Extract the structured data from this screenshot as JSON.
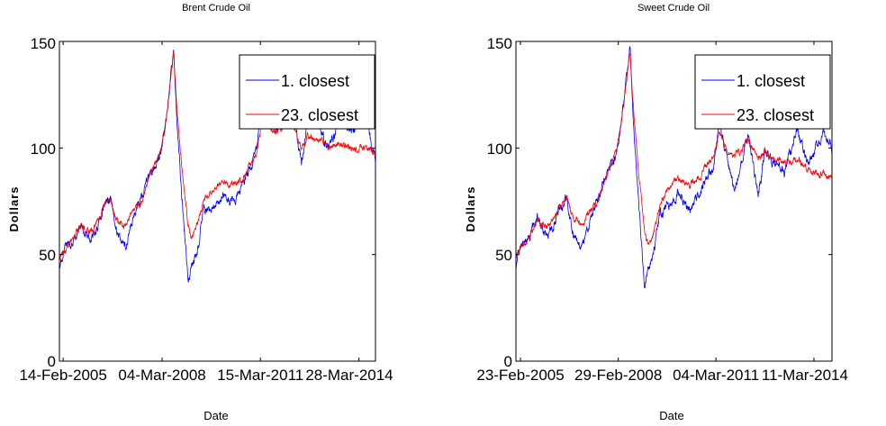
{
  "chart_data": [
    {
      "type": "line",
      "title": "Brent Crude Oil",
      "xlabel": "Date",
      "ylabel": "Dollars",
      "ylim": [
        0,
        150
      ],
      "yticks": [
        "0",
        "50",
        "100",
        "150"
      ],
      "xlim": [
        "2005-01-03",
        "2014-09-30"
      ],
      "xtick_dates": [
        "2005-02-14",
        "2008-03-04",
        "2011-03-15",
        "2014-03-28"
      ],
      "xtick_labels": [
        "14-Feb-2005",
        "04-Mar-2008",
        "15-Mar-2011",
        "28-Mar-2014"
      ],
      "legend": {
        "position": "top-right"
      },
      "grid": false,
      "series": [
        {
          "name": "1. closest",
          "color": "#0000ff",
          "points": [
            [
              "2005-01-03",
              44
            ],
            [
              "2005-03-01",
              52
            ],
            [
              "2005-06-01",
              55
            ],
            [
              "2005-09-01",
              64
            ],
            [
              "2005-12-01",
              57
            ],
            [
              "2006-03-01",
              62
            ],
            [
              "2006-05-01",
              72
            ],
            [
              "2006-08-01",
              77
            ],
            [
              "2006-10-01",
              62
            ],
            [
              "2007-01-15",
              54
            ],
            [
              "2007-04-01",
              66
            ],
            [
              "2007-07-01",
              75
            ],
            [
              "2007-10-01",
              85
            ],
            [
              "2007-12-01",
              91
            ],
            [
              "2008-02-01",
              95
            ],
            [
              "2008-04-01",
              108
            ],
            [
              "2008-06-01",
              130
            ],
            [
              "2008-07-11",
              145
            ],
            [
              "2008-08-15",
              113
            ],
            [
              "2008-10-15",
              75
            ],
            [
              "2008-12-20",
              39
            ],
            [
              "2009-02-01",
              44
            ],
            [
              "2009-04-01",
              51
            ],
            [
              "2009-06-15",
              70
            ],
            [
              "2009-10-01",
              72
            ],
            [
              "2010-01-01",
              78
            ],
            [
              "2010-05-15",
              74
            ],
            [
              "2010-08-01",
              80
            ],
            [
              "2010-12-01",
              91
            ],
            [
              "2011-02-01",
              101
            ],
            [
              "2011-04-15",
              122
            ],
            [
              "2011-07-01",
              110
            ],
            [
              "2011-10-01",
              108
            ],
            [
              "2012-03-01",
              124
            ],
            [
              "2012-06-20",
              91
            ],
            [
              "2012-09-01",
              114
            ],
            [
              "2013-01-01",
              111
            ],
            [
              "2013-04-15",
              99
            ],
            [
              "2013-09-01",
              115
            ],
            [
              "2014-01-01",
              108
            ],
            [
              "2014-06-15",
              114
            ],
            [
              "2014-09-30",
              94
            ]
          ]
        },
        {
          "name": "23. closest",
          "color": "#ff0000",
          "points": [
            [
              "2005-01-03",
              47
            ],
            [
              "2005-03-01",
              52
            ],
            [
              "2005-06-01",
              56
            ],
            [
              "2005-09-01",
              64
            ],
            [
              "2005-12-01",
              60
            ],
            [
              "2006-03-01",
              64
            ],
            [
              "2006-05-01",
              72
            ],
            [
              "2006-08-01",
              77
            ],
            [
              "2006-10-01",
              67
            ],
            [
              "2007-01-15",
              63
            ],
            [
              "2007-04-01",
              70
            ],
            [
              "2007-07-01",
              74
            ],
            [
              "2007-10-01",
              85
            ],
            [
              "2007-12-01",
              92
            ],
            [
              "2008-02-01",
              97
            ],
            [
              "2008-04-01",
              108
            ],
            [
              "2008-06-01",
              130
            ],
            [
              "2008-07-11",
              146
            ],
            [
              "2008-08-15",
              118
            ],
            [
              "2008-10-15",
              90
            ],
            [
              "2008-12-20",
              64
            ],
            [
              "2009-02-01",
              58
            ],
            [
              "2009-04-01",
              64
            ],
            [
              "2009-06-15",
              75
            ],
            [
              "2009-10-01",
              80
            ],
            [
              "2010-01-01",
              84
            ],
            [
              "2010-05-15",
              82
            ],
            [
              "2010-08-01",
              85
            ],
            [
              "2010-12-01",
              92
            ],
            [
              "2011-02-01",
              99
            ],
            [
              "2011-04-15",
              115
            ],
            [
              "2011-07-01",
              110
            ],
            [
              "2011-10-01",
              108
            ],
            [
              "2012-03-01",
              112
            ],
            [
              "2012-06-20",
              100
            ],
            [
              "2012-09-01",
              106
            ],
            [
              "2013-01-01",
              104
            ],
            [
              "2013-04-15",
              100
            ],
            [
              "2013-09-01",
              102
            ],
            [
              "2014-01-01",
              99
            ],
            [
              "2014-06-15",
              100
            ],
            [
              "2014-09-30",
              98
            ]
          ]
        }
      ]
    },
    {
      "type": "line",
      "title": "Sweet Crude Oil",
      "xlabel": "Date",
      "ylabel": "Dollars",
      "ylim": [
        0,
        150
      ],
      "yticks": [
        "0",
        "50",
        "100",
        "150"
      ],
      "xlim": [
        "2005-01-03",
        "2014-09-30"
      ],
      "xtick_dates": [
        "2005-02-23",
        "2008-02-29",
        "2011-03-04",
        "2014-03-11"
      ],
      "xtick_labels": [
        "23-Feb-2005",
        "29-Feb-2008",
        "04-Mar-2011",
        "11-Mar-2014"
      ],
      "legend": {
        "position": "top-right"
      },
      "grid": false,
      "series": [
        {
          "name": "1. closest",
          "color": "#0000ff",
          "points": [
            [
              "2005-01-03",
              44
            ],
            [
              "2005-03-01",
              55
            ],
            [
              "2005-06-01",
              57
            ],
            [
              "2005-09-01",
              68
            ],
            [
              "2005-12-01",
              59
            ],
            [
              "2006-03-01",
              63
            ],
            [
              "2006-05-01",
              72
            ],
            [
              "2006-08-01",
              76
            ],
            [
              "2006-10-01",
              60
            ],
            [
              "2007-01-15",
              53
            ],
            [
              "2007-04-01",
              64
            ],
            [
              "2007-07-01",
              75
            ],
            [
              "2007-10-01",
              85
            ],
            [
              "2007-12-01",
              92
            ],
            [
              "2008-02-01",
              96
            ],
            [
              "2008-04-01",
              110
            ],
            [
              "2008-06-01",
              133
            ],
            [
              "2008-07-11",
              146
            ],
            [
              "2008-08-15",
              115
            ],
            [
              "2008-10-15",
              75
            ],
            [
              "2008-12-20",
              34
            ],
            [
              "2009-02-01",
              42
            ],
            [
              "2009-04-01",
              50
            ],
            [
              "2009-06-15",
              70
            ],
            [
              "2009-10-01",
              73
            ],
            [
              "2010-01-01",
              80
            ],
            [
              "2010-05-15",
              70
            ],
            [
              "2010-08-01",
              77
            ],
            [
              "2010-12-01",
              88
            ],
            [
              "2011-02-01",
              90
            ],
            [
              "2011-04-15",
              112
            ],
            [
              "2011-07-01",
              96
            ],
            [
              "2011-10-01",
              79
            ],
            [
              "2012-03-01",
              107
            ],
            [
              "2012-06-20",
              78
            ],
            [
              "2012-09-01",
              97
            ],
            [
              "2013-01-01",
              93
            ],
            [
              "2013-04-15",
              88
            ],
            [
              "2013-09-01",
              108
            ],
            [
              "2014-01-01",
              93
            ],
            [
              "2014-06-15",
              106
            ],
            [
              "2014-09-30",
              100
            ]
          ]
        },
        {
          "name": "23. closest",
          "color": "#ff0000",
          "points": [
            [
              "2005-01-03",
              47
            ],
            [
              "2005-03-01",
              54
            ],
            [
              "2005-06-01",
              58
            ],
            [
              "2005-09-01",
              66
            ],
            [
              "2005-12-01",
              62
            ],
            [
              "2006-03-01",
              66
            ],
            [
              "2006-05-01",
              72
            ],
            [
              "2006-08-01",
              76
            ],
            [
              "2006-10-01",
              68
            ],
            [
              "2007-01-15",
              64
            ],
            [
              "2007-04-01",
              70
            ],
            [
              "2007-07-01",
              74
            ],
            [
              "2007-10-01",
              85
            ],
            [
              "2007-12-01",
              92
            ],
            [
              "2008-02-01",
              97
            ],
            [
              "2008-04-01",
              110
            ],
            [
              "2008-06-01",
              132
            ],
            [
              "2008-07-11",
              145
            ],
            [
              "2008-08-15",
              120
            ],
            [
              "2008-10-15",
              88
            ],
            [
              "2008-12-20",
              60
            ],
            [
              "2009-02-01",
              55
            ],
            [
              "2009-04-01",
              60
            ],
            [
              "2009-06-15",
              74
            ],
            [
              "2009-10-01",
              82
            ],
            [
              "2010-01-01",
              86
            ],
            [
              "2010-05-15",
              82
            ],
            [
              "2010-08-01",
              85
            ],
            [
              "2010-12-01",
              92
            ],
            [
              "2011-02-01",
              95
            ],
            [
              "2011-04-15",
              108
            ],
            [
              "2011-07-01",
              100
            ],
            [
              "2011-10-01",
              95
            ],
            [
              "2012-03-01",
              104
            ],
            [
              "2012-06-20",
              94
            ],
            [
              "2012-09-01",
              98
            ],
            [
              "2013-01-01",
              95
            ],
            [
              "2013-04-15",
              93
            ],
            [
              "2013-09-01",
              95
            ],
            [
              "2014-01-01",
              90
            ],
            [
              "2014-06-15",
              88
            ],
            [
              "2014-09-30",
              86
            ]
          ]
        }
      ]
    }
  ]
}
